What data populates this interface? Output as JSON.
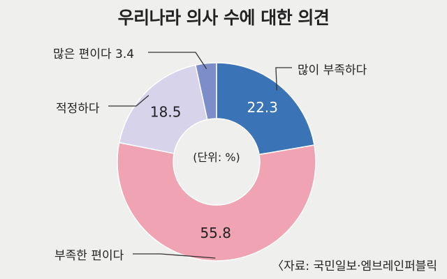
{
  "chart_data": {
    "type": "pie",
    "title": "우리나라 의사 수에 대한 의견",
    "unit_note": "(단위: %)",
    "source": "〈자료: 국민일보·엠브레인퍼블릭",
    "slices": [
      {
        "label": "많이 부족하다",
        "value": 22.3,
        "value_text": "22.3",
        "color": "#3a73b6"
      },
      {
        "label": "부족한 편이다",
        "value": 55.8,
        "value_text": "55.8",
        "color": "#f0a3b3"
      },
      {
        "label": "적정하다",
        "value": 18.5,
        "value_text": "18.5",
        "color": "#d6d3ea"
      },
      {
        "label": "많은 편이다",
        "value": 3.4,
        "value_text": "많은 편이다 3.4",
        "color": "#7d8dc9"
      }
    ],
    "donut": true
  }
}
